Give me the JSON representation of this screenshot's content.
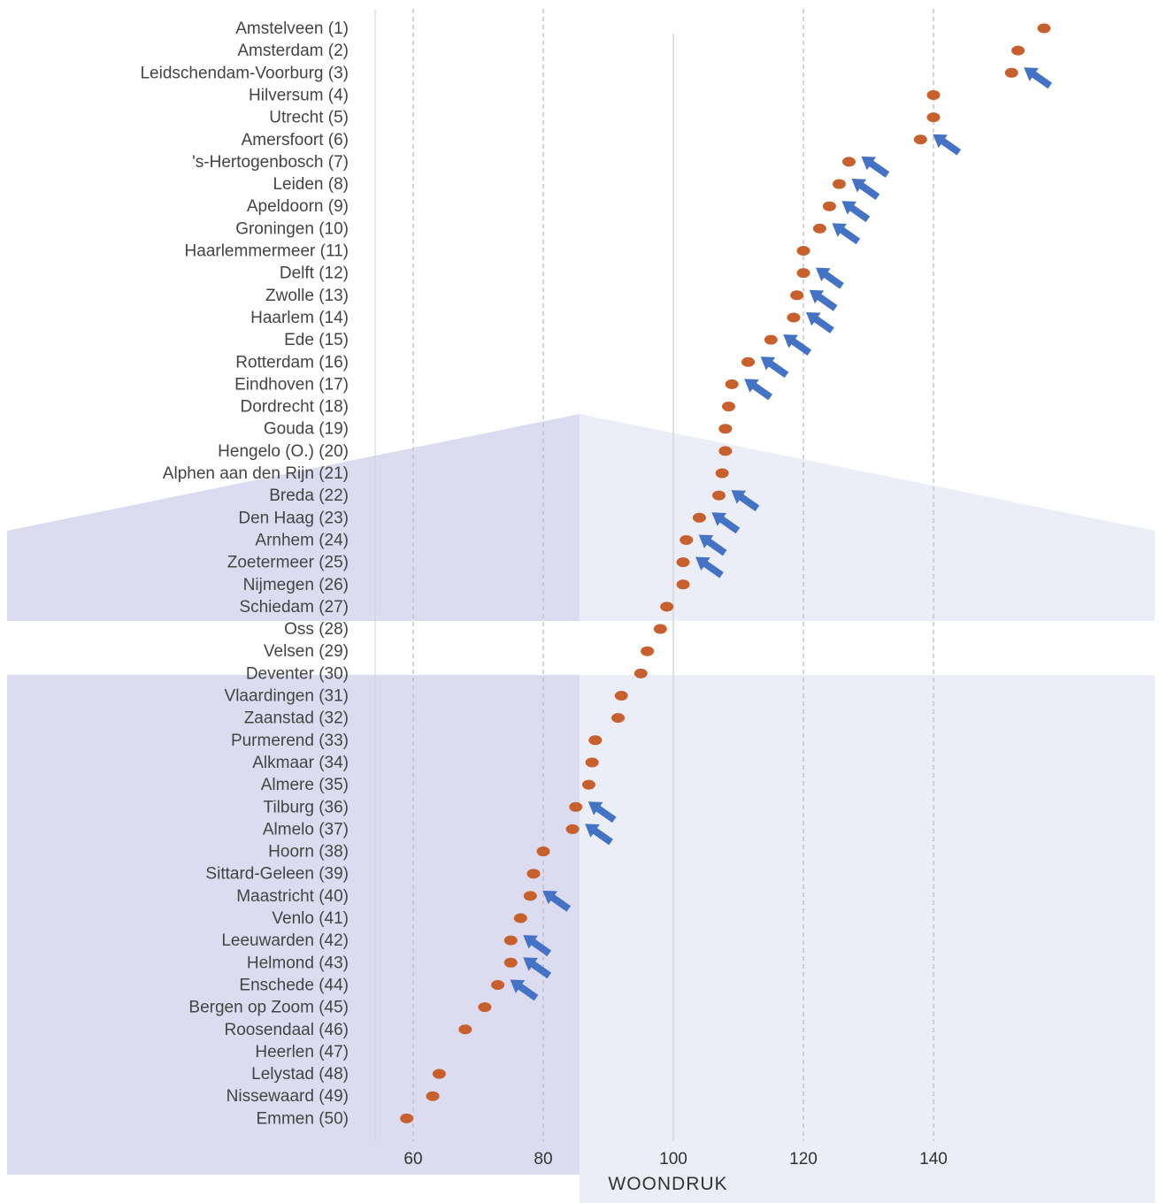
{
  "chart_data": {
    "type": "scatter",
    "xlabel": "WOONDRUK",
    "ylabel": "",
    "xlim": [
      54,
      160
    ],
    "xticks": [
      60,
      80,
      100,
      120,
      140
    ],
    "grid": "dashed vertical at 60, 80, 120, 140; solid vertical at 100",
    "categories": [
      "Amstelveen (1)",
      "Amsterdam (2)",
      "Leidschendam-Voorburg (3)",
      "Hilversum (4)",
      "Utrecht (5)",
      "Amersfoort (6)",
      "'s-Hertogenbosch (7)",
      "Leiden (8)",
      "Apeldoorn (9)",
      "Groningen (10)",
      "Haarlemmermeer (11)",
      "Delft (12)",
      "Zwolle (13)",
      "Haarlem (14)",
      "Ede (15)",
      "Rotterdam (16)",
      "Eindhoven (17)",
      "Dordrecht (18)",
      "Gouda (19)",
      "Hengelo (O.) (20)",
      "Alphen aan den Rijn (21)",
      "Breda (22)",
      "Den Haag (23)",
      "Arnhem (24)",
      "Zoetermeer (25)",
      "Nijmegen (26)",
      "Schiedam (27)",
      "Oss (28)",
      "Velsen (29)",
      "Deventer (30)",
      "Vlaardingen (31)",
      "Zaanstad (32)",
      "Purmerend (33)",
      "Alkmaar (34)",
      "Almere (35)",
      "Tilburg (36)",
      "Almelo (37)",
      "Hoorn (38)",
      "Sittard-Geleen (39)",
      "Maastricht (40)",
      "Venlo (41)",
      "Leeuwarden (42)",
      "Helmond (43)",
      "Enschede (44)",
      "Bergen op Zoom (45)",
      "Roosendaal (46)",
      "Heerlen (47)",
      "Lelystad (48)",
      "Nissewaard (49)",
      "Emmen (50)"
    ],
    "values": [
      157,
      153,
      152,
      140,
      140,
      138,
      127,
      125.5,
      124,
      122.5,
      120,
      120,
      119,
      118.5,
      115,
      111.5,
      109,
      108.5,
      108,
      108,
      107.5,
      107,
      104,
      102,
      101.5,
      101.5,
      99,
      98,
      96,
      95,
      92,
      91.5,
      88,
      87.5,
      87,
      85,
      84.5,
      80,
      78.5,
      78,
      76.5,
      75,
      75,
      73,
      71,
      68,
      null,
      64,
      63,
      59
    ],
    "marked_with_arrow": [
      "Leidschendam-Voorburg (3)",
      "Amersfoort (6)",
      "'s-Hertogenbosch (7)",
      "Leiden (8)",
      "Apeldoorn (9)",
      "Groningen (10)",
      "Delft (12)",
      "Zwolle (13)",
      "Haarlem (14)",
      "Ede (15)",
      "Rotterdam (16)",
      "Eindhoven (17)",
      "Breda (22)",
      "Den Haag (23)",
      "Arnhem (24)",
      "Zoetermeer (25)",
      "Tilburg (36)",
      "Almelo (37)",
      "Maastricht (40)",
      "Leeuwarden (42)",
      "Helmond (43)",
      "Enschede (44)"
    ],
    "colors": {
      "point": "#c8602e",
      "arrow": "#4472c4",
      "band": "#dcdcf0",
      "grid": "#bdbdbd"
    }
  }
}
